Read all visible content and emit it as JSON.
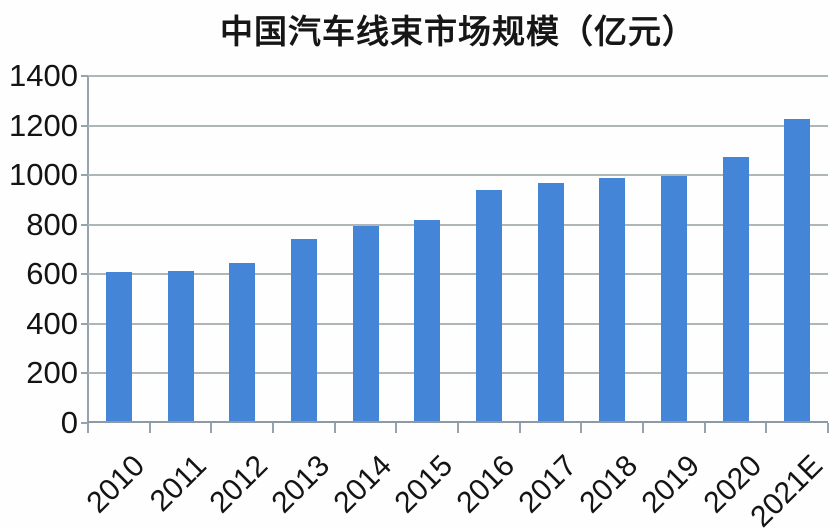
{
  "chart_data": {
    "type": "bar",
    "title": "中国汽车线束市场规模（亿元）",
    "categories": [
      "2010",
      "2011",
      "2012",
      "2013",
      "2014",
      "2015",
      "2016",
      "2017",
      "2018",
      "2019",
      "2020",
      "2021E"
    ],
    "values": [
      611,
      615,
      645,
      741,
      796,
      820,
      941,
      970,
      988,
      995,
      1075,
      1226
    ],
    "xlabel": "",
    "ylabel": "",
    "ylim": [
      0,
      1400
    ],
    "yticks": [
      0,
      200,
      400,
      600,
      800,
      1000,
      1200,
      1400
    ],
    "grid": true,
    "legend": "none",
    "colors": {
      "bar": "#4585d8",
      "gridline": "#aeb6b8",
      "axis": "#8c9aa6",
      "text": "#141414",
      "background": "#fefefe"
    }
  }
}
